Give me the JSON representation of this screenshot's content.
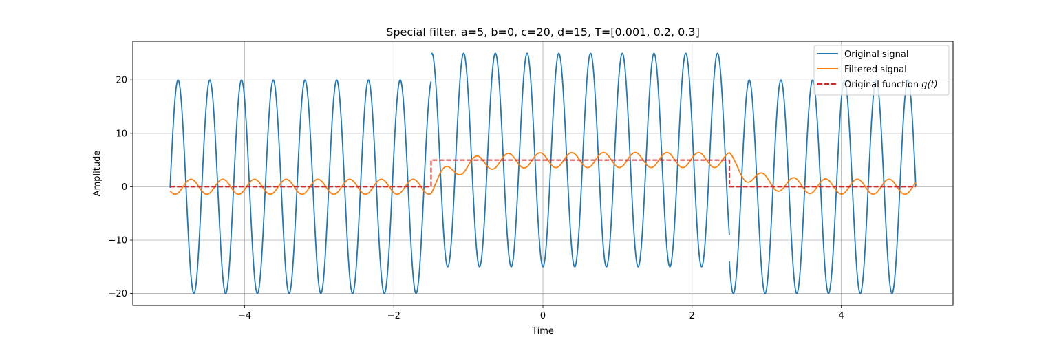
{
  "chart_data": {
    "type": "line",
    "title": "Special filter. a=5, b=0, c=20, d=15, T=[0.001, 0.2, 0.3]",
    "xlabel": "Time",
    "ylabel": "Amplitude",
    "xlim": [
      -5.5,
      5.5
    ],
    "ylim": [
      -22.25,
      27.25
    ],
    "xticks": [
      -4,
      -2,
      0,
      2,
      4
    ],
    "xtick_labels": [
      "−4",
      "−2",
      "0",
      "2",
      "4"
    ],
    "yticks": [
      -20,
      -10,
      0,
      10,
      20
    ],
    "ytick_labels": [
      "−20",
      "−10",
      "0",
      "10",
      "20"
    ],
    "grid": true,
    "legend_position": "top-right",
    "series": [
      {
        "name": "Original signal",
        "color": "#1f77b4",
        "style": "solid",
        "segments": [
          {
            "t_start": -5.0,
            "t_end": -1.5,
            "offset": 0,
            "amplitude": 20,
            "frequency_hz": 2.35,
            "phase_ref": -4.893
          },
          {
            "t_start": -1.5,
            "t_end": 2.5,
            "offset": 5,
            "amplitude": 20,
            "frequency_hz": 2.35,
            "phase_ref": -4.893
          },
          {
            "t_start": 2.5,
            "t_end": 5.0,
            "offset": 0,
            "amplitude": 20,
            "frequency_hz": 2.35,
            "phase_ref": -4.893
          }
        ]
      },
      {
        "name": "Filtered signal",
        "color": "#ff7f0e",
        "style": "solid",
        "ripple_amplitude": 1.4,
        "ripple_frequency_hz": 2.35,
        "ripple_phase_ref": -4.72,
        "step_time_constant": 0.3,
        "steps": [
          {
            "t": -1.5,
            "level": 5
          },
          {
            "t": 2.5,
            "level": 0
          }
        ]
      },
      {
        "name": "Original function g(t)",
        "color": "#d62728",
        "style": "dashed",
        "points": [
          [
            -5.0,
            0
          ],
          [
            -1.5,
            0
          ],
          [
            -1.5,
            5
          ],
          [
            2.5,
            5
          ],
          [
            2.5,
            0
          ],
          [
            5.0,
            0
          ]
        ]
      }
    ]
  },
  "legend": {
    "items": [
      {
        "label": "Original signal",
        "color": "#1f77b4",
        "style": "solid"
      },
      {
        "label": "Filtered signal",
        "color": "#ff7f0e",
        "style": "solid"
      },
      {
        "label": "Original function ",
        "math": "g(t)",
        "color": "#d62728",
        "style": "dashed"
      }
    ]
  }
}
